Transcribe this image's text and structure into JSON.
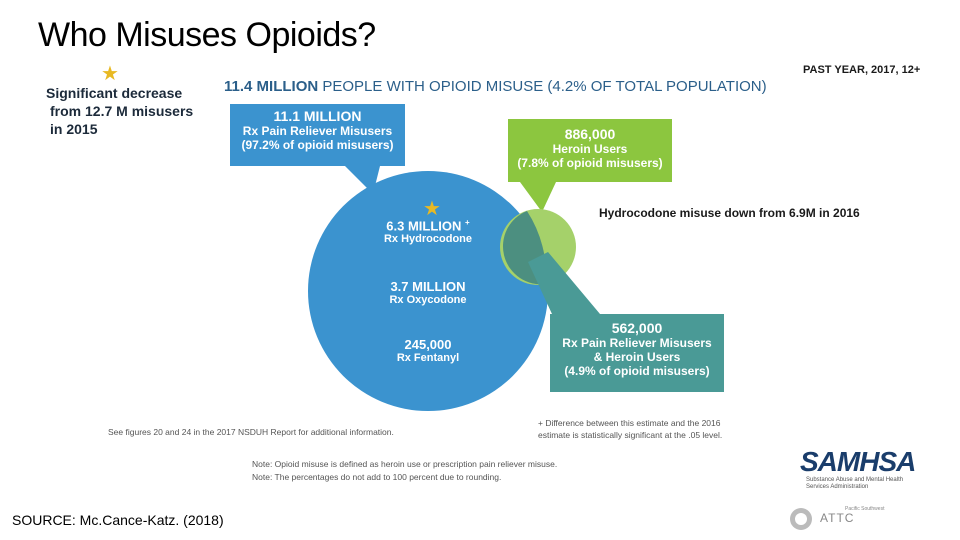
{
  "title": "Who Misuses Opioids?",
  "left_note": [
    "Significant decrease",
    "from 12.7 M misusers",
    "in 2015"
  ],
  "headline": {
    "bold": "11.4 MILLION",
    "rest": " PEOPLE WITH OPIOID MISUSE (4.2% OF TOTAL POPULATION)"
  },
  "past_year": "PAST YEAR, 2017, 12+",
  "rx_box": {
    "big": "11.1 MILLION",
    "line1": "Rx Pain Reliever Misusers",
    "line2": "(97.2% of opioid misusers)"
  },
  "heroin_box": {
    "big": "886,000",
    "line1": "Heroin Users",
    "line2": "(7.8% of opioid misusers)"
  },
  "both_box": {
    "big": "562,000",
    "line1": "Rx Pain Reliever Misusers",
    "line2": "& Heroin Users",
    "line3": "(4.9% of opioid misusers)"
  },
  "hydro_note": "Hydrocodone misuse down from 6.9M in 2016",
  "circle": {
    "hydro_big": "6.3 MILLION",
    "hydro_mark": "+",
    "hydro_sm": "Rx Hydrocodone",
    "oxy_big": "3.7 MILLION",
    "oxy_sm": "Rx Oxycodone",
    "fent_big": "245,000",
    "fent_sm": "Rx Fentanyl"
  },
  "fine_print": {
    "figures": "See figures 20 and 24 in the 2017 NSDUH Report for additional information.",
    "diff1": "+ Difference between this estimate and the 2016",
    "diff2": "estimate is statistically significant at the .05 level.",
    "note1": "Note: Opioid misuse is defined as heroin use or prescription pain reliever misuse.",
    "note2": "Note: The percentages do not add to 100 percent due to rounding."
  },
  "source": "SOURCE: Mc.Cance-Katz. (2018)",
  "logo": {
    "samhsa": "SAMHSA",
    "samhsa_sub": "Substance Abuse and Mental Health Services Administration",
    "attc": "ATTC",
    "attc_sub": "Pacific Southwest"
  },
  "colors": {
    "blue": "#3b93cf",
    "green": "#8cc63f",
    "teal": "#4a9a96",
    "overlap": "#4c8f80"
  }
}
